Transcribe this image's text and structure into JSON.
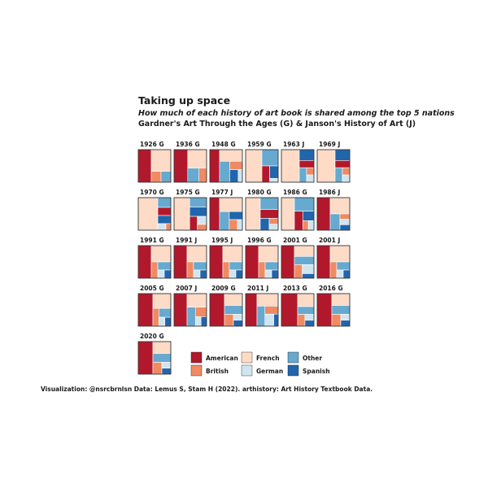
{
  "title": "Taking up space",
  "subtitle": "How much of each history of art book is shared among the top 5 nations",
  "subtitle2": "Gardner's Art Through the Ages (G) & Janson's History of Art (J)",
  "caption": "Visualization: @nsrcbrnlsn  Data: Lemus S, Stam H (2022). arthistory: Art History Textbook Data.",
  "colors": {
    "American": "#b2182b",
    "British": "#ef8a62",
    "French": "#fddbc7",
    "German": "#d1e5f0",
    "Other": "#67a9cf",
    "Spanish": "#2166ac"
  },
  "chart_data": {
    "type": "treemap",
    "legend": [
      "American",
      "British",
      "French",
      "German",
      "Other",
      "Spanish"
    ],
    "panels": [
      {
        "label": "1926 G",
        "shares": {
          "American": 0.4,
          "British": 0.1,
          "French": 0.4,
          "German": 0.0,
          "Other": 0.1,
          "Spanish": 0.0
        }
      },
      {
        "label": "1936 G",
        "shares": {
          "American": 0.42,
          "British": 0.1,
          "French": 0.33,
          "German": 0.0,
          "Other": 0.15,
          "Spanish": 0.0
        }
      },
      {
        "label": "1948 G",
        "shares": {
          "American": 0.3,
          "British": 0.1,
          "French": 0.25,
          "German": 0.05,
          "Other": 0.2,
          "Spanish": 0.1
        }
      },
      {
        "label": "1959 G",
        "shares": {
          "American": 0.12,
          "British": 0.0,
          "French": 0.5,
          "German": 0.03,
          "Other": 0.25,
          "Spanish": 0.1
        }
      },
      {
        "label": "1963 J",
        "shares": {
          "American": 0.1,
          "British": 0.05,
          "French": 0.55,
          "German": 0.05,
          "Other": 0.1,
          "Spanish": 0.15
        }
      },
      {
        "label": "1969 J",
        "shares": {
          "American": 0.1,
          "British": 0.05,
          "French": 0.55,
          "German": 0.05,
          "Other": 0.1,
          "Spanish": 0.15
        }
      },
      {
        "label": "1970 G",
        "shares": {
          "American": 0.1,
          "British": 0.03,
          "French": 0.6,
          "German": 0.05,
          "Other": 0.12,
          "Spanish": 0.1
        }
      },
      {
        "label": "1975 G",
        "shares": {
          "American": 0.1,
          "British": 0.05,
          "French": 0.48,
          "German": 0.07,
          "Other": 0.15,
          "Spanish": 0.15
        }
      },
      {
        "label": "1977 J",
        "shares": {
          "American": 0.3,
          "British": 0.08,
          "French": 0.3,
          "German": 0.05,
          "Other": 0.17,
          "Spanish": 0.1
        }
      },
      {
        "label": "1980 G",
        "shares": {
          "American": 0.15,
          "British": 0.05,
          "French": 0.45,
          "German": 0.05,
          "Other": 0.2,
          "Spanish": 0.1
        }
      },
      {
        "label": "1986 G",
        "shares": {
          "American": 0.15,
          "British": 0.05,
          "French": 0.4,
          "German": 0.05,
          "Other": 0.25,
          "Spanish": 0.1
        }
      },
      {
        "label": "1986 J",
        "shares": {
          "American": 0.4,
          "British": 0.05,
          "French": 0.3,
          "German": 0.05,
          "Other": 0.15,
          "Spanish": 0.05
        }
      },
      {
        "label": "1991 G",
        "shares": {
          "American": 0.4,
          "British": 0.1,
          "French": 0.3,
          "German": 0.05,
          "Other": 0.1,
          "Spanish": 0.05
        }
      },
      {
        "label": "1991 J",
        "shares": {
          "American": 0.4,
          "British": 0.1,
          "French": 0.3,
          "German": 0.05,
          "Other": 0.1,
          "Spanish": 0.05
        }
      },
      {
        "label": "1995 J",
        "shares": {
          "American": 0.4,
          "British": 0.1,
          "French": 0.3,
          "German": 0.05,
          "Other": 0.1,
          "Spanish": 0.05
        }
      },
      {
        "label": "1996 G",
        "shares": {
          "American": 0.4,
          "British": 0.1,
          "French": 0.3,
          "German": 0.05,
          "Other": 0.1,
          "Spanish": 0.05
        }
      },
      {
        "label": "2001 G",
        "shares": {
          "American": 0.4,
          "British": 0.1,
          "French": 0.2,
          "German": 0.1,
          "Other": 0.15,
          "Spanish": 0.05
        }
      },
      {
        "label": "2001 J",
        "shares": {
          "American": 0.4,
          "British": 0.1,
          "French": 0.3,
          "German": 0.05,
          "Other": 0.1,
          "Spanish": 0.05
        }
      },
      {
        "label": "2005 G",
        "shares": {
          "American": 0.45,
          "British": 0.1,
          "French": 0.25,
          "German": 0.05,
          "Other": 0.1,
          "Spanish": 0.05
        }
      },
      {
        "label": "2007 J",
        "shares": {
          "American": 0.4,
          "British": 0.1,
          "French": 0.25,
          "German": 0.05,
          "Other": 0.15,
          "Spanish": 0.05
        }
      },
      {
        "label": "2009 G",
        "shares": {
          "American": 0.45,
          "British": 0.1,
          "French": 0.2,
          "German": 0.05,
          "Other": 0.15,
          "Spanish": 0.05
        }
      },
      {
        "label": "2011 J",
        "shares": {
          "American": 0.35,
          "British": 0.1,
          "French": 0.25,
          "German": 0.1,
          "Other": 0.15,
          "Spanish": 0.05
        }
      },
      {
        "label": "2013 G",
        "shares": {
          "American": 0.5,
          "British": 0.08,
          "French": 0.2,
          "German": 0.05,
          "Other": 0.12,
          "Spanish": 0.05
        }
      },
      {
        "label": "2016 G",
        "shares": {
          "American": 0.45,
          "British": 0.1,
          "French": 0.2,
          "German": 0.05,
          "Other": 0.15,
          "Spanish": 0.05
        }
      },
      {
        "label": "2020 G",
        "shares": {
          "American": 0.45,
          "British": 0.1,
          "French": 0.2,
          "German": 0.05,
          "Other": 0.15,
          "Spanish": 0.05
        }
      }
    ]
  }
}
